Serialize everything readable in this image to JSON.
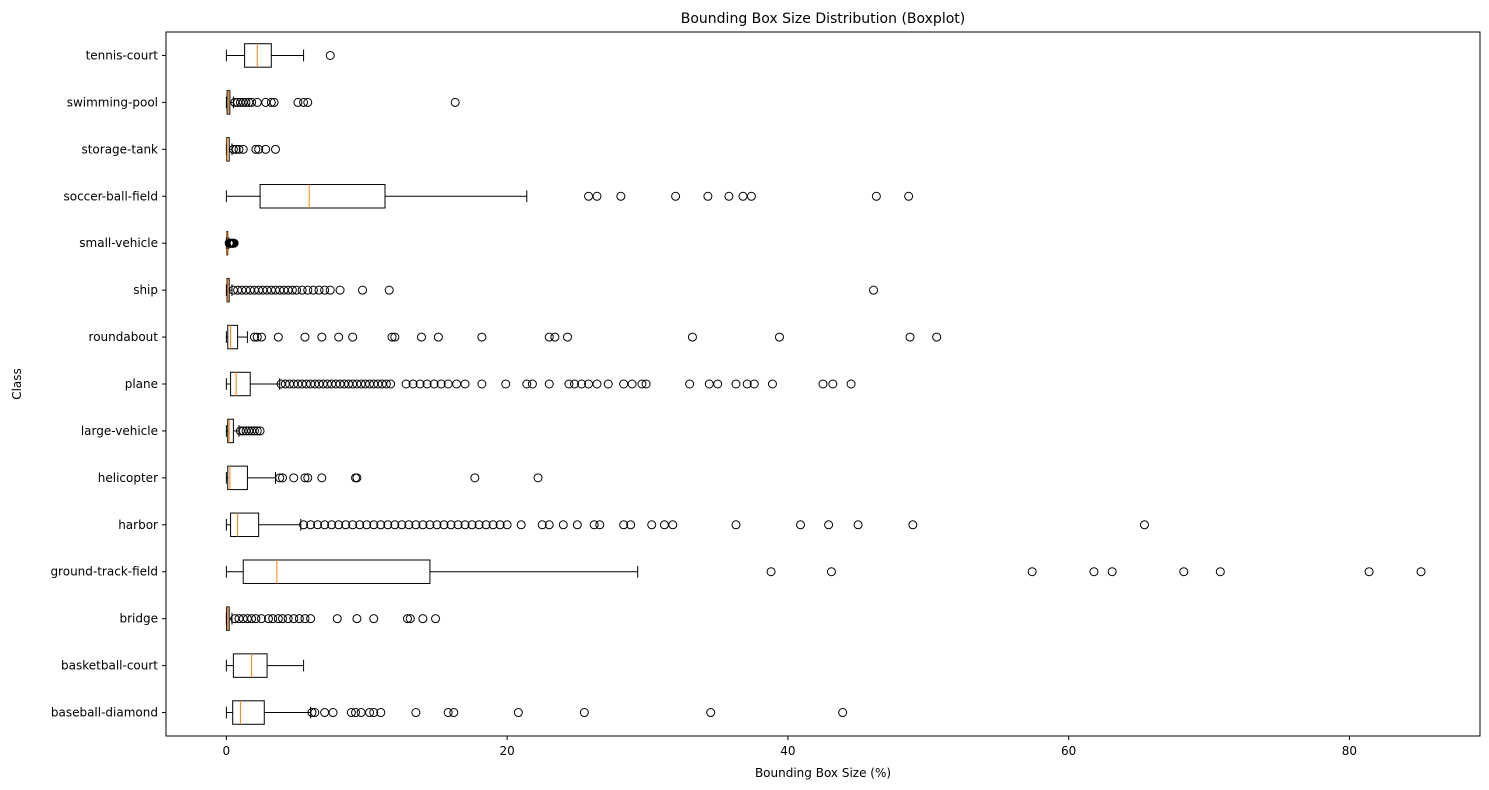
{
  "chart_data": {
    "type": "boxplot",
    "orientation": "horizontal",
    "title": "Bounding Box Size Distribution (Boxplot)",
    "xlabel": "Bounding Box Size (%)",
    "ylabel": "Class",
    "xlim": [
      -4.3,
      89.3
    ],
    "xticks": [
      0,
      20,
      40,
      60,
      80
    ],
    "grid": false,
    "colors": {
      "box": "#000000",
      "median": "#ff7f0e",
      "flier": "#000000"
    },
    "series": [
      {
        "name": "baseball-diamond",
        "whislo": 0,
        "q1": 0.45,
        "med": 1.0,
        "q3": 2.7,
        "whishi": 6.0,
        "fliers": [
          6.1,
          6.3,
          7.0,
          7.6,
          8.9,
          9.2,
          9.6,
          10.2,
          10.5,
          11.0,
          13.5,
          15.8,
          16.2,
          20.8,
          25.5,
          34.5,
          43.9
        ]
      },
      {
        "name": "basketball-court",
        "whislo": 0,
        "q1": 0.5,
        "med": 1.8,
        "q3": 2.9,
        "whishi": 5.5,
        "fliers": []
      },
      {
        "name": "bridge",
        "whislo": 0,
        "q1": 0.02,
        "med": 0.1,
        "q3": 0.2,
        "whishi": 0.4,
        "fliers": [
          0.6,
          0.9,
          1.2,
          1.5,
          1.8,
          2.1,
          2.5,
          3.0,
          3.3,
          3.7,
          4.0,
          4.4,
          4.8,
          5.2,
          5.6,
          6.0,
          7.9,
          9.3,
          10.5,
          12.9,
          13.1,
          14.0,
          14.9
        ]
      },
      {
        "name": "ground-track-field",
        "whislo": 0,
        "q1": 1.2,
        "med": 3.6,
        "q3": 14.5,
        "whishi": 29.3,
        "fliers": [
          38.8,
          43.1,
          57.4,
          61.8,
          63.1,
          68.2,
          70.8,
          81.4,
          85.1
        ]
      },
      {
        "name": "harbor",
        "whislo": 0,
        "q1": 0.3,
        "med": 0.8,
        "q3": 2.3,
        "whishi": 5.3,
        "fliers": [
          5.5,
          6.0,
          6.5,
          7.0,
          7.5,
          8.0,
          8.5,
          9.0,
          9.5,
          10.0,
          10.5,
          11.0,
          11.5,
          12.0,
          12.5,
          13.0,
          13.5,
          14.0,
          14.5,
          15.0,
          15.5,
          16.0,
          16.5,
          17.0,
          17.5,
          18.0,
          18.5,
          19.0,
          19.5,
          20.0,
          21.0,
          22.5,
          23.0,
          24.0,
          25.0,
          26.2,
          26.6,
          28.3,
          28.8,
          30.3,
          31.2,
          31.8,
          36.3,
          40.9,
          42.9,
          45.0,
          48.9,
          65.4
        ]
      },
      {
        "name": "helicopter",
        "whislo": 0,
        "q1": 0.1,
        "med": 0.25,
        "q3": 1.5,
        "whishi": 3.5,
        "fliers": [
          3.8,
          4.0,
          4.8,
          5.6,
          5.8,
          6.8,
          9.2,
          9.3,
          17.7,
          22.2
        ]
      },
      {
        "name": "large-vehicle",
        "whislo": 0,
        "q1": 0.1,
        "med": 0.2,
        "q3": 0.5,
        "whishi": 0.9,
        "fliers": [
          1.0,
          1.2,
          1.4,
          1.6,
          1.8,
          2.0,
          2.2,
          2.4
        ]
      },
      {
        "name": "plane",
        "whislo": 0,
        "q1": 0.3,
        "med": 0.7,
        "q3": 1.7,
        "whishi": 3.8,
        "fliers": [
          3.9,
          4.2,
          4.5,
          4.8,
          5.1,
          5.4,
          5.7,
          6.0,
          6.3,
          6.6,
          6.9,
          7.2,
          7.5,
          7.8,
          8.1,
          8.4,
          8.7,
          9.0,
          9.3,
          9.6,
          9.9,
          10.2,
          10.5,
          10.8,
          11.1,
          11.4,
          11.7,
          12.8,
          13.3,
          13.8,
          14.3,
          14.8,
          15.3,
          15.8,
          16.4,
          17.0,
          18.2,
          19.9,
          21.4,
          21.8,
          23.0,
          24.4,
          24.8,
          25.3,
          25.8,
          26.4,
          27.2,
          28.3,
          28.9,
          29.6,
          29.9,
          33.0,
          34.4,
          35.0,
          36.3,
          37.1,
          37.6,
          38.9,
          42.5,
          43.2,
          44.5
        ]
      },
      {
        "name": "roundabout",
        "whislo": 0,
        "q1": 0.1,
        "med": 0.3,
        "q3": 0.8,
        "whishi": 1.5,
        "fliers": [
          2.0,
          2.2,
          2.5,
          3.7,
          5.6,
          6.8,
          8.0,
          9.0,
          11.8,
          12.0,
          13.9,
          15.1,
          18.2,
          23.0,
          23.4,
          24.3,
          33.2,
          39.4,
          48.7,
          50.6
        ]
      },
      {
        "name": "ship",
        "whislo": 0,
        "q1": 0.05,
        "med": 0.1,
        "q3": 0.2,
        "whishi": 0.4,
        "fliers": [
          0.5,
          0.8,
          1.1,
          1.4,
          1.7,
          2.0,
          2.3,
          2.6,
          2.9,
          3.2,
          3.5,
          3.8,
          4.1,
          4.4,
          4.7,
          5.0,
          5.4,
          5.8,
          6.2,
          6.6,
          7.0,
          7.4,
          8.1,
          9.7,
          11.6,
          46.1
        ]
      },
      {
        "name": "small-vehicle",
        "whislo": 0,
        "q1": 0.03,
        "med": 0.06,
        "q3": 0.1,
        "whishi": 0.18,
        "fliers": [
          0.2,
          0.25,
          0.3,
          0.35,
          0.4,
          0.45,
          0.5,
          0.55
        ]
      },
      {
        "name": "soccer-ball-field",
        "whislo": 0,
        "q1": 2.4,
        "med": 5.9,
        "q3": 11.3,
        "whishi": 21.4,
        "fliers": [
          25.8,
          26.4,
          28.1,
          32.0,
          34.3,
          35.8,
          36.8,
          37.4,
          46.3,
          48.6
        ]
      },
      {
        "name": "storage-tank",
        "whislo": 0,
        "q1": 0.02,
        "med": 0.06,
        "q3": 0.2,
        "whishi": 0.4,
        "fliers": [
          0.5,
          0.7,
          0.9,
          1.2,
          2.1,
          2.3,
          2.8,
          3.5
        ]
      },
      {
        "name": "swimming-pool",
        "whislo": 0,
        "q1": 0.05,
        "med": 0.15,
        "q3": 0.25,
        "whishi": 0.5,
        "fliers": [
          0.6,
          0.8,
          1.0,
          1.2,
          1.4,
          1.6,
          1.8,
          2.2,
          2.8,
          3.2,
          3.4,
          5.1,
          5.5,
          5.8,
          16.3
        ]
      },
      {
        "name": "tennis-court",
        "whislo": 0,
        "q1": 1.3,
        "med": 2.2,
        "q3": 3.2,
        "whishi": 5.5,
        "fliers": [
          7.4
        ]
      }
    ]
  }
}
